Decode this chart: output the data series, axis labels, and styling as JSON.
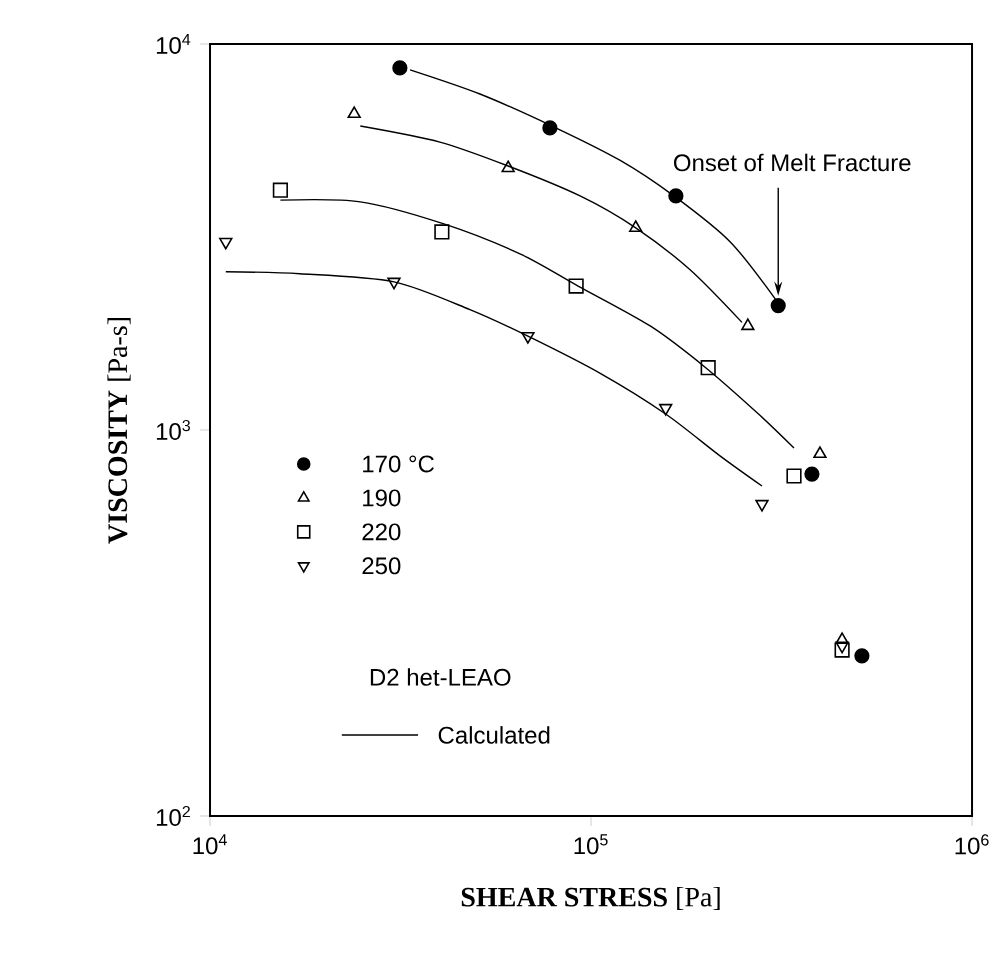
{
  "chart_data": {
    "type": "scatter",
    "xlabel": "**SHEAR STRESS** [Pa]",
    "ylabel": "**VISCOSITY** [Pa-s]",
    "log": "xy",
    "xlim": [
      10000,
      1000000
    ],
    "ylim": [
      100,
      10000
    ],
    "xticks": [
      {
        "value": 10000,
        "label": "10$^{4}$"
      },
      {
        "value": 100000,
        "label": "10$^{5}$"
      },
      {
        "value": 1000000,
        "label": "10$^{6}$"
      }
    ],
    "yticks": [
      {
        "value": 100,
        "label": "10$^{2}$"
      },
      {
        "value": 1000,
        "label": "10$^{3}$"
      },
      {
        "value": 10000,
        "label": "10$^{4}$"
      }
    ],
    "legend": "left",
    "legend_title": "D2   het-LEAO",
    "annotations": [
      "Onset of Melt Fracture"
    ],
    "series": [
      {
        "name": "170 °C",
        "marker": "circle",
        "color": "#000000",
        "x": [
          31500,
          78000,
          167000,
          310000,
          380000,
          514000
        ],
        "values": [
          8670,
          6060,
          4040,
          2100,
          769,
          260
        ]
      },
      {
        "name": "190",
        "marker": "triangle",
        "color": "#000000",
        "x": [
          23900,
          60600,
          131000,
          258000,
          399000,
          456000
        ],
        "values": [
          6590,
          4770,
          3340,
          1860,
          867,
          286
        ]
      },
      {
        "name": "220",
        "marker": "square",
        "color": "#000000",
        "x": [
          15300,
          40600,
          91400,
          203000,
          341000,
          456000
        ],
        "values": [
          4180,
          3260,
          2360,
          1450,
          760,
          269
        ]
      },
      {
        "name": "250",
        "marker": "triangle-down",
        "color": "#000000",
        "x": [
          11000,
          30400,
          68300,
          157000,
          281000,
          456000
        ],
        "values": [
          3070,
          2420,
          1750,
          1140,
          643,
          276
        ]
      },
      {
        "name": "Calculated",
        "type": "line",
        "color": "#000000",
        "x": [
          33500,
          51100,
          79000,
          119000,
          165000,
          232000,
          306000
        ],
        "values": [
          8570,
          7420,
          6130,
          5000,
          4040,
          3070,
          2170
        ]
      },
      {
        "type": "line",
        "color": "#000000",
        "x": [
          24800,
          40100,
          60600,
          93600,
          131000,
          182000,
          249000
        ],
        "values": [
          6130,
          5570,
          4830,
          4040,
          3340,
          2600,
          1900
        ]
      },
      {
        "type": "line",
        "color": "#000000",
        "x": [
          15300,
          24800,
          41100,
          65100,
          92500,
          143000,
          200000,
          278000,
          341000
        ],
        "values": [
          3940,
          3900,
          3420,
          2860,
          2360,
          1860,
          1450,
          1090,
          898
        ]
      },
      {
        "type": "line",
        "color": "#000000",
        "x": [
          11000,
          17200,
          30400,
          48100,
          68300,
          106000,
          157000,
          218000,
          281000
        ],
        "values": [
          2570,
          2540,
          2420,
          2050,
          1750,
          1400,
          1100,
          857,
          716
        ]
      }
    ]
  }
}
